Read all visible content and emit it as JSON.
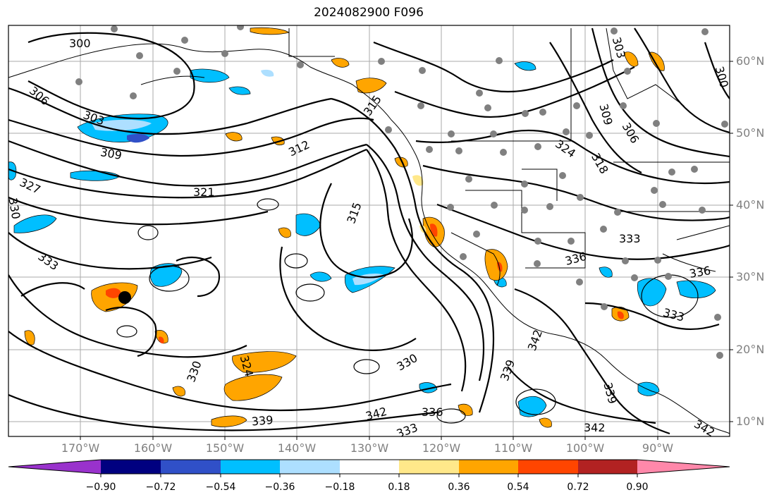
{
  "title": "2024082900 F096",
  "lat_labels": [
    "60°N",
    "50°N",
    "40°N",
    "30°N",
    "20°N",
    "10°N"
  ],
  "lon_labels": [
    "170°W",
    "160°W",
    "150°W",
    "140°W",
    "130°W",
    "120°W",
    "110°W",
    "100°W",
    "90°W"
  ],
  "contour_labels": [
    "300",
    "303",
    "306",
    "309",
    "312",
    "315",
    "321",
    "324",
    "327",
    "330",
    "333",
    "336",
    "339",
    "342",
    "300",
    "303",
    "306",
    "309",
    "315",
    "318",
    "330",
    "333",
    "336",
    "342",
    "339",
    "333",
    "324",
    "330",
    "336",
    "339",
    "342",
    "333",
    "342"
  ],
  "colorbar": {
    "tick_labels": [
      "−0.90",
      "−0.72",
      "−0.54",
      "−0.36",
      "−0.18",
      "0.18",
      "0.36",
      "0.54",
      "0.72",
      "0.90"
    ],
    "colors": [
      "#9932CC",
      "#000080",
      "#3050C8",
      "#00BFFF",
      "#ADDFFF",
      "#FFFFFF",
      "#FFE88A",
      "#FFA500",
      "#FF4500",
      "#B22222",
      "#FF88AA"
    ]
  },
  "map": {
    "projection": "cylindrical",
    "lon_range": [
      -180,
      -80
    ],
    "lat_range": [
      8,
      65
    ],
    "gridlines": true,
    "marker": "black-dot"
  }
}
